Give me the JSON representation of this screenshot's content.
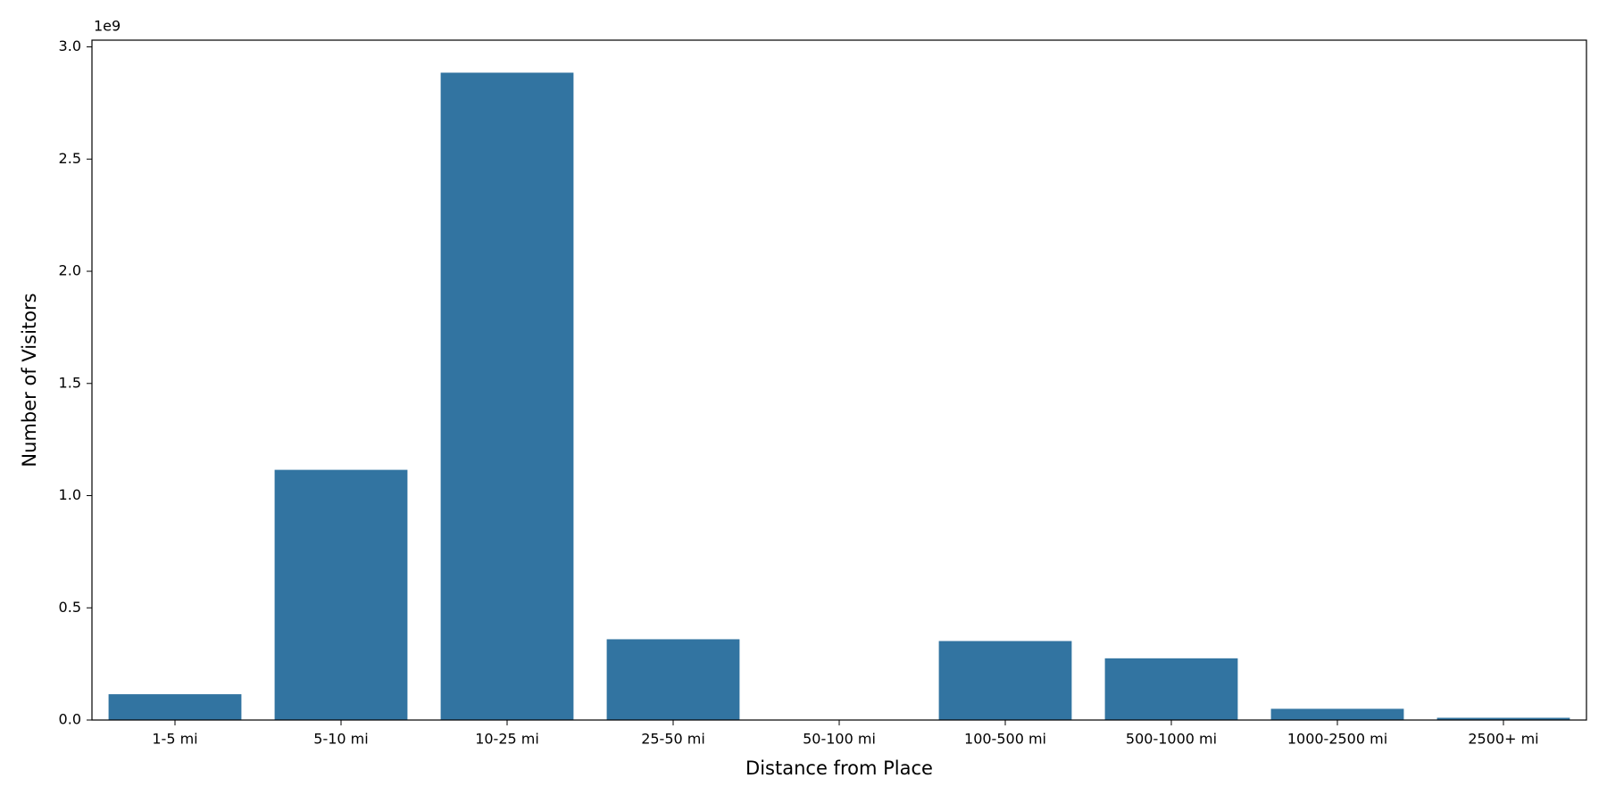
{
  "chart_data": {
    "type": "bar",
    "x_label": "Distance from Place",
    "y_label": "Number of Visitors",
    "y_offset_label": "1e9",
    "categories": [
      "1-5 mi",
      "5-10 mi",
      "10-25 mi",
      "25-50 mi",
      "50-100 mi",
      "100-500 mi",
      "500-1000 mi",
      "1000-2500 mi",
      "2500+ mi"
    ],
    "values": [
      0.115,
      1.115,
      2.885,
      0.36,
      0.002,
      0.352,
      0.275,
      0.05,
      0.01
    ],
    "color": "#3274a1",
    "ylim": [
      0,
      3.03
    ],
    "yticks": [
      {
        "value": 0,
        "label": "0.0"
      },
      0.5,
      {
        "value": 1,
        "label": "1.0"
      },
      1.5,
      {
        "value": 2,
        "label": "2.0"
      },
      2.5,
      {
        "value": 3,
        "label": "3.0"
      }
    ],
    "grid": false
  }
}
